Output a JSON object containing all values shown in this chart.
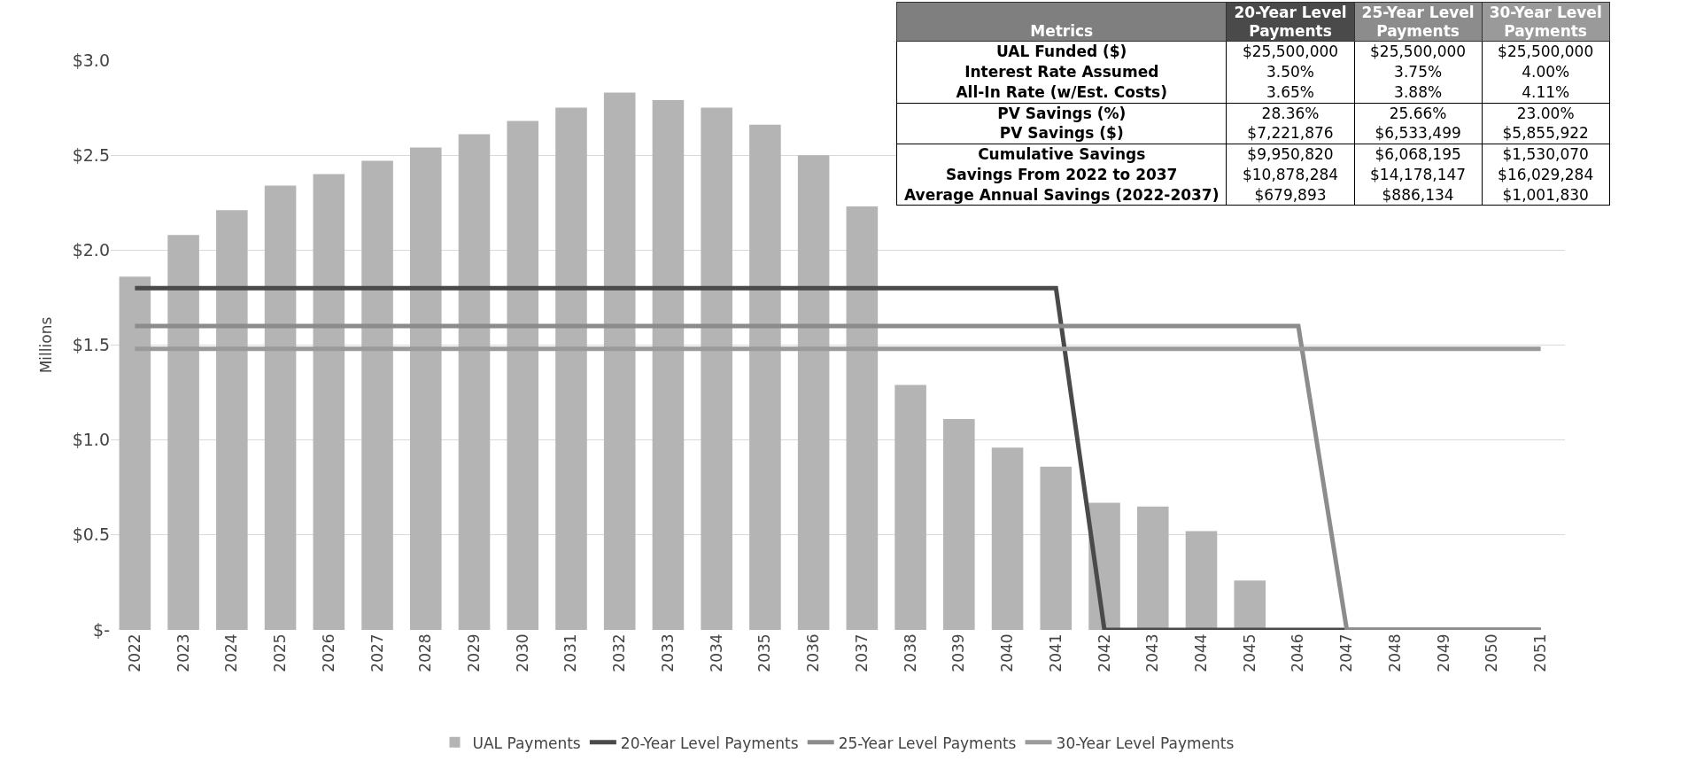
{
  "chart_data": [
    {
      "type": "bar",
      "ylabel": "Millions",
      "categories": [
        "2022",
        "2023",
        "2024",
        "2025",
        "2026",
        "2027",
        "2028",
        "2029",
        "2030",
        "2031",
        "2032",
        "2033",
        "2034",
        "2035",
        "2036",
        "2037",
        "2038",
        "2039",
        "2040",
        "2041",
        "2042",
        "2043",
        "2044",
        "2045",
        "2046",
        "2047",
        "2048",
        "2049",
        "2050",
        "2051"
      ],
      "series": [
        {
          "name": "UAL Payments",
          "color": "#b4b4b4",
          "values": [
            1.86,
            2.08,
            2.21,
            2.34,
            2.4,
            2.47,
            2.54,
            2.61,
            2.68,
            2.75,
            2.83,
            2.79,
            2.75,
            2.66,
            2.5,
            2.23,
            1.29,
            1.11,
            0.96,
            0.86,
            0.67,
            0.65,
            0.52,
            0.26,
            0,
            0,
            0,
            0,
            0,
            0
          ]
        },
        {
          "name": "20-Year Level Payments",
          "type": "line",
          "color": "#4a4a4a",
          "values": [
            1.8,
            1.8,
            1.8,
            1.8,
            1.8,
            1.8,
            1.8,
            1.8,
            1.8,
            1.8,
            1.8,
            1.8,
            1.8,
            1.8,
            1.8,
            1.8,
            1.8,
            1.8,
            1.8,
            1.8,
            0,
            0,
            0,
            0,
            0,
            0,
            0,
            0,
            0,
            0
          ]
        },
        {
          "name": "25-Year Level Payments",
          "type": "line",
          "color": "#8c8c8c",
          "values": [
            1.6,
            1.6,
            1.6,
            1.6,
            1.6,
            1.6,
            1.6,
            1.6,
            1.6,
            1.6,
            1.6,
            1.6,
            1.6,
            1.6,
            1.6,
            1.6,
            1.6,
            1.6,
            1.6,
            1.6,
            1.6,
            1.6,
            1.6,
            1.6,
            1.6,
            0,
            0,
            0,
            0,
            0
          ]
        },
        {
          "name": "30-Year Level Payments",
          "type": "line",
          "color": "#9a9a9a",
          "values": [
            1.48,
            1.48,
            1.48,
            1.48,
            1.48,
            1.48,
            1.48,
            1.48,
            1.48,
            1.48,
            1.48,
            1.48,
            1.48,
            1.48,
            1.48,
            1.48,
            1.48,
            1.48,
            1.48,
            1.48,
            1.48,
            1.48,
            1.48,
            1.48,
            1.48,
            1.48,
            1.48,
            1.48,
            1.48,
            1.48
          ]
        }
      ],
      "ylim": [
        0,
        3
      ],
      "yticks": [
        {
          "value": 0,
          "label": "$-"
        },
        {
          "value": 0.5,
          "label": "$0.5"
        },
        {
          "value": 1,
          "label": "$1.0"
        },
        {
          "value": 1.5,
          "label": "$1.5"
        },
        {
          "value": 2,
          "label": "$2.0"
        },
        {
          "value": 2.5,
          "label": "$2.5"
        },
        {
          "value": 3,
          "label": "$3.0"
        }
      ],
      "grid": "y",
      "legend": "bottom",
      "marker": "none",
      "line_style": "solid"
    },
    {
      "type": "other",
      "title": "Metrics",
      "categories": [
        "20-Year Level Payments",
        "25-Year Level Payments",
        "30-Year Level Payments"
      ],
      "colors": [
        "#4a4a4a",
        "#8c8c8c",
        "#9a9a9a"
      ],
      "y_categories": [
        "UAL Funded ($)",
        "Interest Rate Assumed",
        "All-In Rate (w/Est. Costs)",
        "PV Savings (%)",
        "PV Savings ($)",
        "Cumulative Savings",
        "Savings From 2022 to 2037",
        "Average Annual Savings (2022-2037)"
      ],
      "cell_labels": [
        [
          "$25,500,000",
          "$25,500,000",
          "$25,500,000"
        ],
        [
          "3.50%",
          "3.75%",
          "4.00%"
        ],
        [
          "3.65%",
          "3.88%",
          "4.11%"
        ],
        [
          "28.36%",
          "25.66%",
          "23.00%"
        ],
        [
          "$7,221,876",
          "$6,533,499",
          "$5,855,922"
        ],
        [
          "$9,950,820",
          "$6,068,195",
          "$1,530,070"
        ],
        [
          "$10,878,284",
          "$14,178,147",
          "$16,029,284"
        ],
        [
          "$679,893",
          "$886,134",
          "$1,001,830"
        ]
      ]
    }
  ]
}
